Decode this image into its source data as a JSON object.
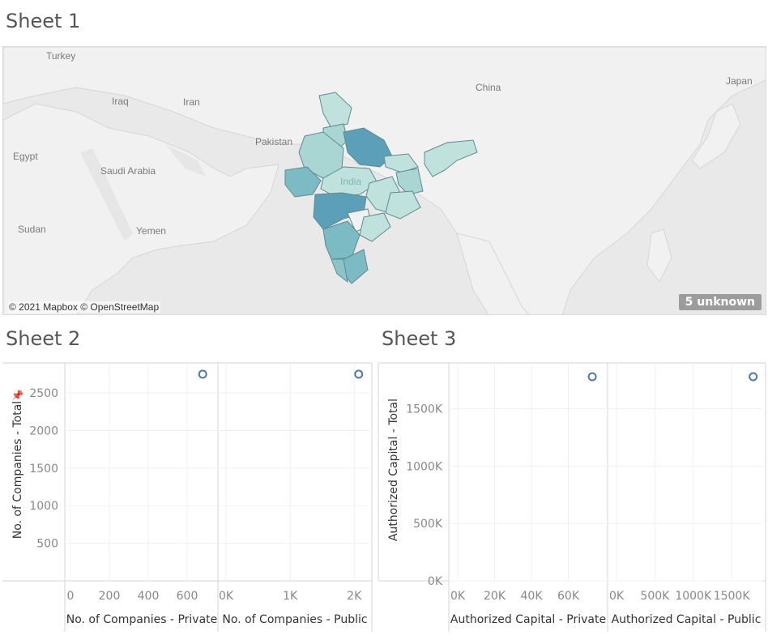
{
  "sheets": {
    "sheet1_title": "Sheet 1",
    "sheet2_title": "Sheet 2",
    "sheet3_title": "Sheet 3"
  },
  "map": {
    "country_labels": [
      "Turkey",
      "Iraq",
      "Iran",
      "Egypt",
      "Saudi Arabia",
      "Pakistan",
      "China",
      "Japan",
      "Sudan",
      "Yemen",
      "India"
    ],
    "attribution": "© 2021 Mapbox © OpenStreetMap",
    "unknown_badge": "5 unknown",
    "colors": {
      "background": "#e9e9e9",
      "land": "#f2f2f2",
      "light": "#bfe3dc",
      "mid": "#8cc4c8",
      "dark": "#5b9fb8"
    }
  },
  "chart_data": [
    {
      "type": "scatter",
      "x": [
        680
      ],
      "y": [
        2750
      ],
      "xticks": [
        "0",
        "200",
        "400",
        "600"
      ],
      "xlim": [
        0,
        750
      ],
      "yticks": [
        "500",
        "1000",
        "1500",
        "2000",
        "2500"
      ],
      "ylim": [
        0,
        2900
      ],
      "xlabel": "No. of Companies - Private",
      "ylabel": "No. of Companies - Total",
      "color": "#4e79a7"
    },
    {
      "type": "scatter",
      "x": [
        2070
      ],
      "y": [
        2750
      ],
      "xticks": [
        "0K",
        "1K",
        "2K"
      ],
      "xlim": [
        0,
        2250
      ],
      "yticks": [],
      "ylim": [
        0,
        2900
      ],
      "xlabel": "No. of Companies - Public",
      "ylabel": "",
      "color": "#4e79a7"
    },
    {
      "type": "scatter",
      "x": [
        73000
      ],
      "y": [
        1780000
      ],
      "xticks": [
        "0K",
        "20K",
        "40K",
        "60K"
      ],
      "xlim": [
        0,
        80000
      ],
      "yticks": [
        "0K",
        "500K",
        "1000K",
        "1500K"
      ],
      "ylim": [
        0,
        1900000
      ],
      "xlabel": "Authorized Capital - Private",
      "ylabel": "Authorized Capital - Total",
      "color": "#4e79a7"
    },
    {
      "type": "scatter",
      "x": [
        1780000
      ],
      "y": [
        1780000
      ],
      "xticks": [
        "0K",
        "500K",
        "1000K",
        "1500K"
      ],
      "xlim": [
        0,
        1900000
      ],
      "yticks": [],
      "ylim": [
        0,
        1900000
      ],
      "xlabel": "Authorized Capital - Public",
      "ylabel": "",
      "color": "#4e79a7"
    }
  ]
}
